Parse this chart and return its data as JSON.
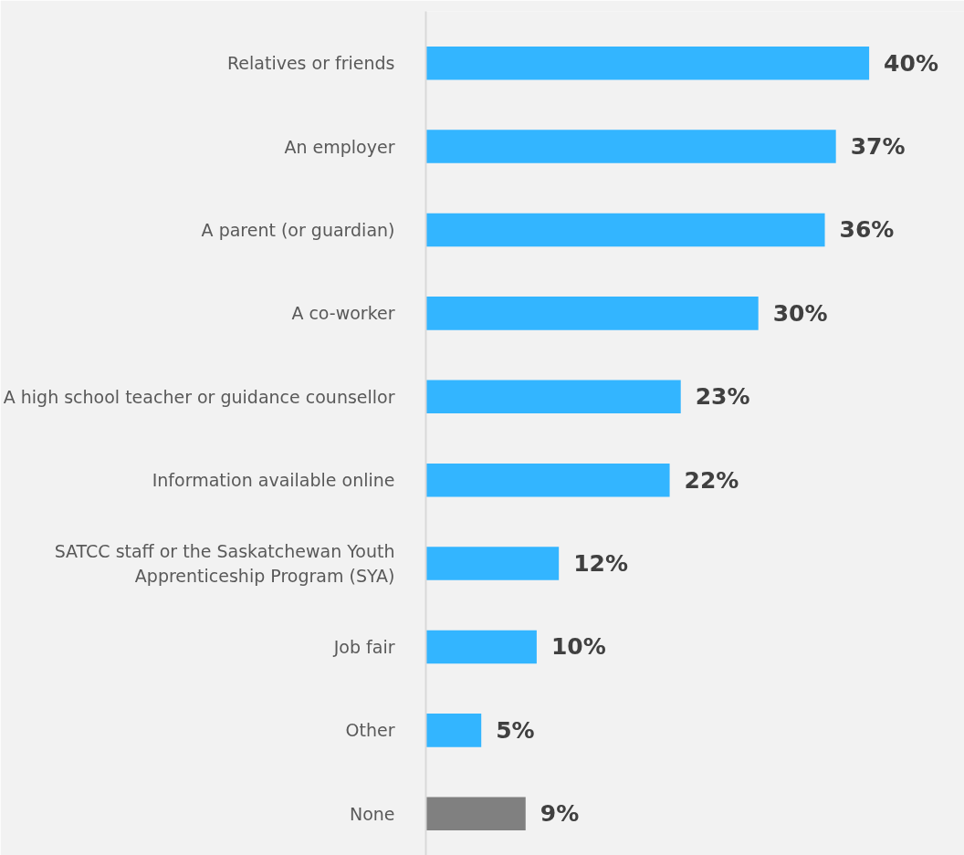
{
  "chart_data": {
    "type": "bar",
    "orientation": "horizontal",
    "tick_labels": "y",
    "data_labels": true,
    "value_labels": [
      "40%",
      "37%",
      "36%",
      "30%",
      "23%",
      "22%",
      "12%",
      "10%",
      "5%",
      "9%"
    ],
    "categories": [
      "Relatives or friends",
      "An employer",
      "A parent (or guardian)",
      "A co-worker",
      "A high school teacher or guidance counsellor",
      "Information available online",
      "SATCC staff or the Saskatchewan Youth Apprenticeship Program (SYA)",
      "Job fair",
      "Other",
      "None"
    ],
    "values": [
      40,
      37,
      36,
      30,
      23,
      22,
      12,
      10,
      5,
      9
    ],
    "colors": [
      "#33b5ff",
      "#33b5ff",
      "#33b5ff",
      "#33b5ff",
      "#33b5ff",
      "#33b5ff",
      "#33b5ff",
      "#33b5ff",
      "#33b5ff",
      "#808080"
    ],
    "grid": false
  }
}
